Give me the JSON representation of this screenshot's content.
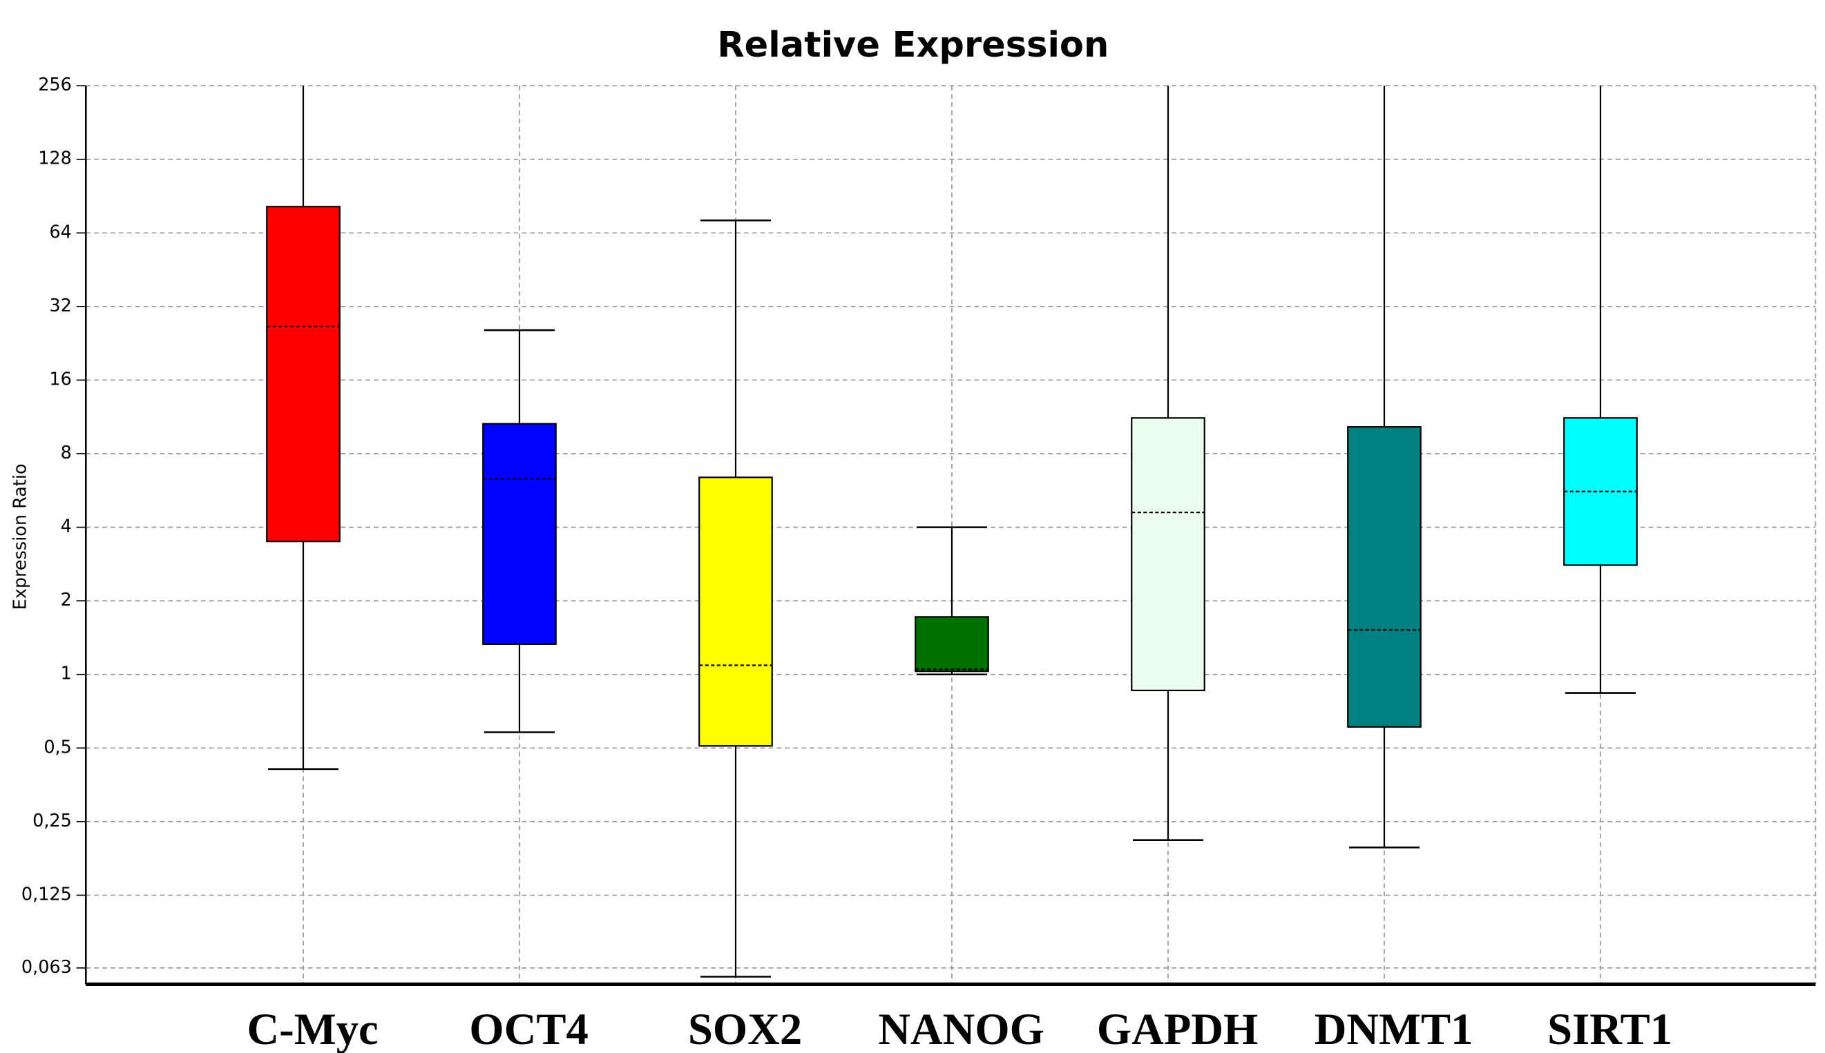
{
  "chart_data": {
    "type": "box",
    "title": "Relative Expression",
    "y_label": "Expression Ratio",
    "categories": [
      "C-Myc",
      "OCT4",
      "SOX2",
      "NANOG",
      "GAPDH",
      "DNMT1",
      "SIRT1"
    ],
    "colors": [
      "#ff0000",
      "#0000ff",
      "#ffff00",
      "#007000",
      "#eafdef",
      "#008080",
      "#00ffff"
    ],
    "min": [
      0.41,
      0.58,
      0.058,
      1.0,
      0.21,
      0.196,
      0.84
    ],
    "q1": [
      3.5,
      1.33,
      0.51,
      1.03,
      0.86,
      0.61,
      2.8
    ],
    "median": [
      26.5,
      6.3,
      1.09,
      1.05,
      4.6,
      1.52,
      5.6
    ],
    "q3": [
      82,
      10.6,
      6.4,
      1.72,
      11.2,
      10.3,
      11.2
    ],
    "max": [
      256,
      25.6,
      72,
      4.0,
      256,
      256,
      256
    ],
    "log_scale": true,
    "log_base": 2,
    "grid": true,
    "ylim": [
      0.054,
      256
    ],
    "yticks": [
      {
        "value": 0.063,
        "label": "0,063"
      },
      {
        "value": 0.125,
        "label": "0,125"
      },
      {
        "value": 0.25,
        "label": "0,25"
      },
      {
        "value": 0.5,
        "label": "0,5"
      },
      1,
      2,
      4,
      8,
      16,
      32,
      64,
      128,
      256
    ]
  }
}
